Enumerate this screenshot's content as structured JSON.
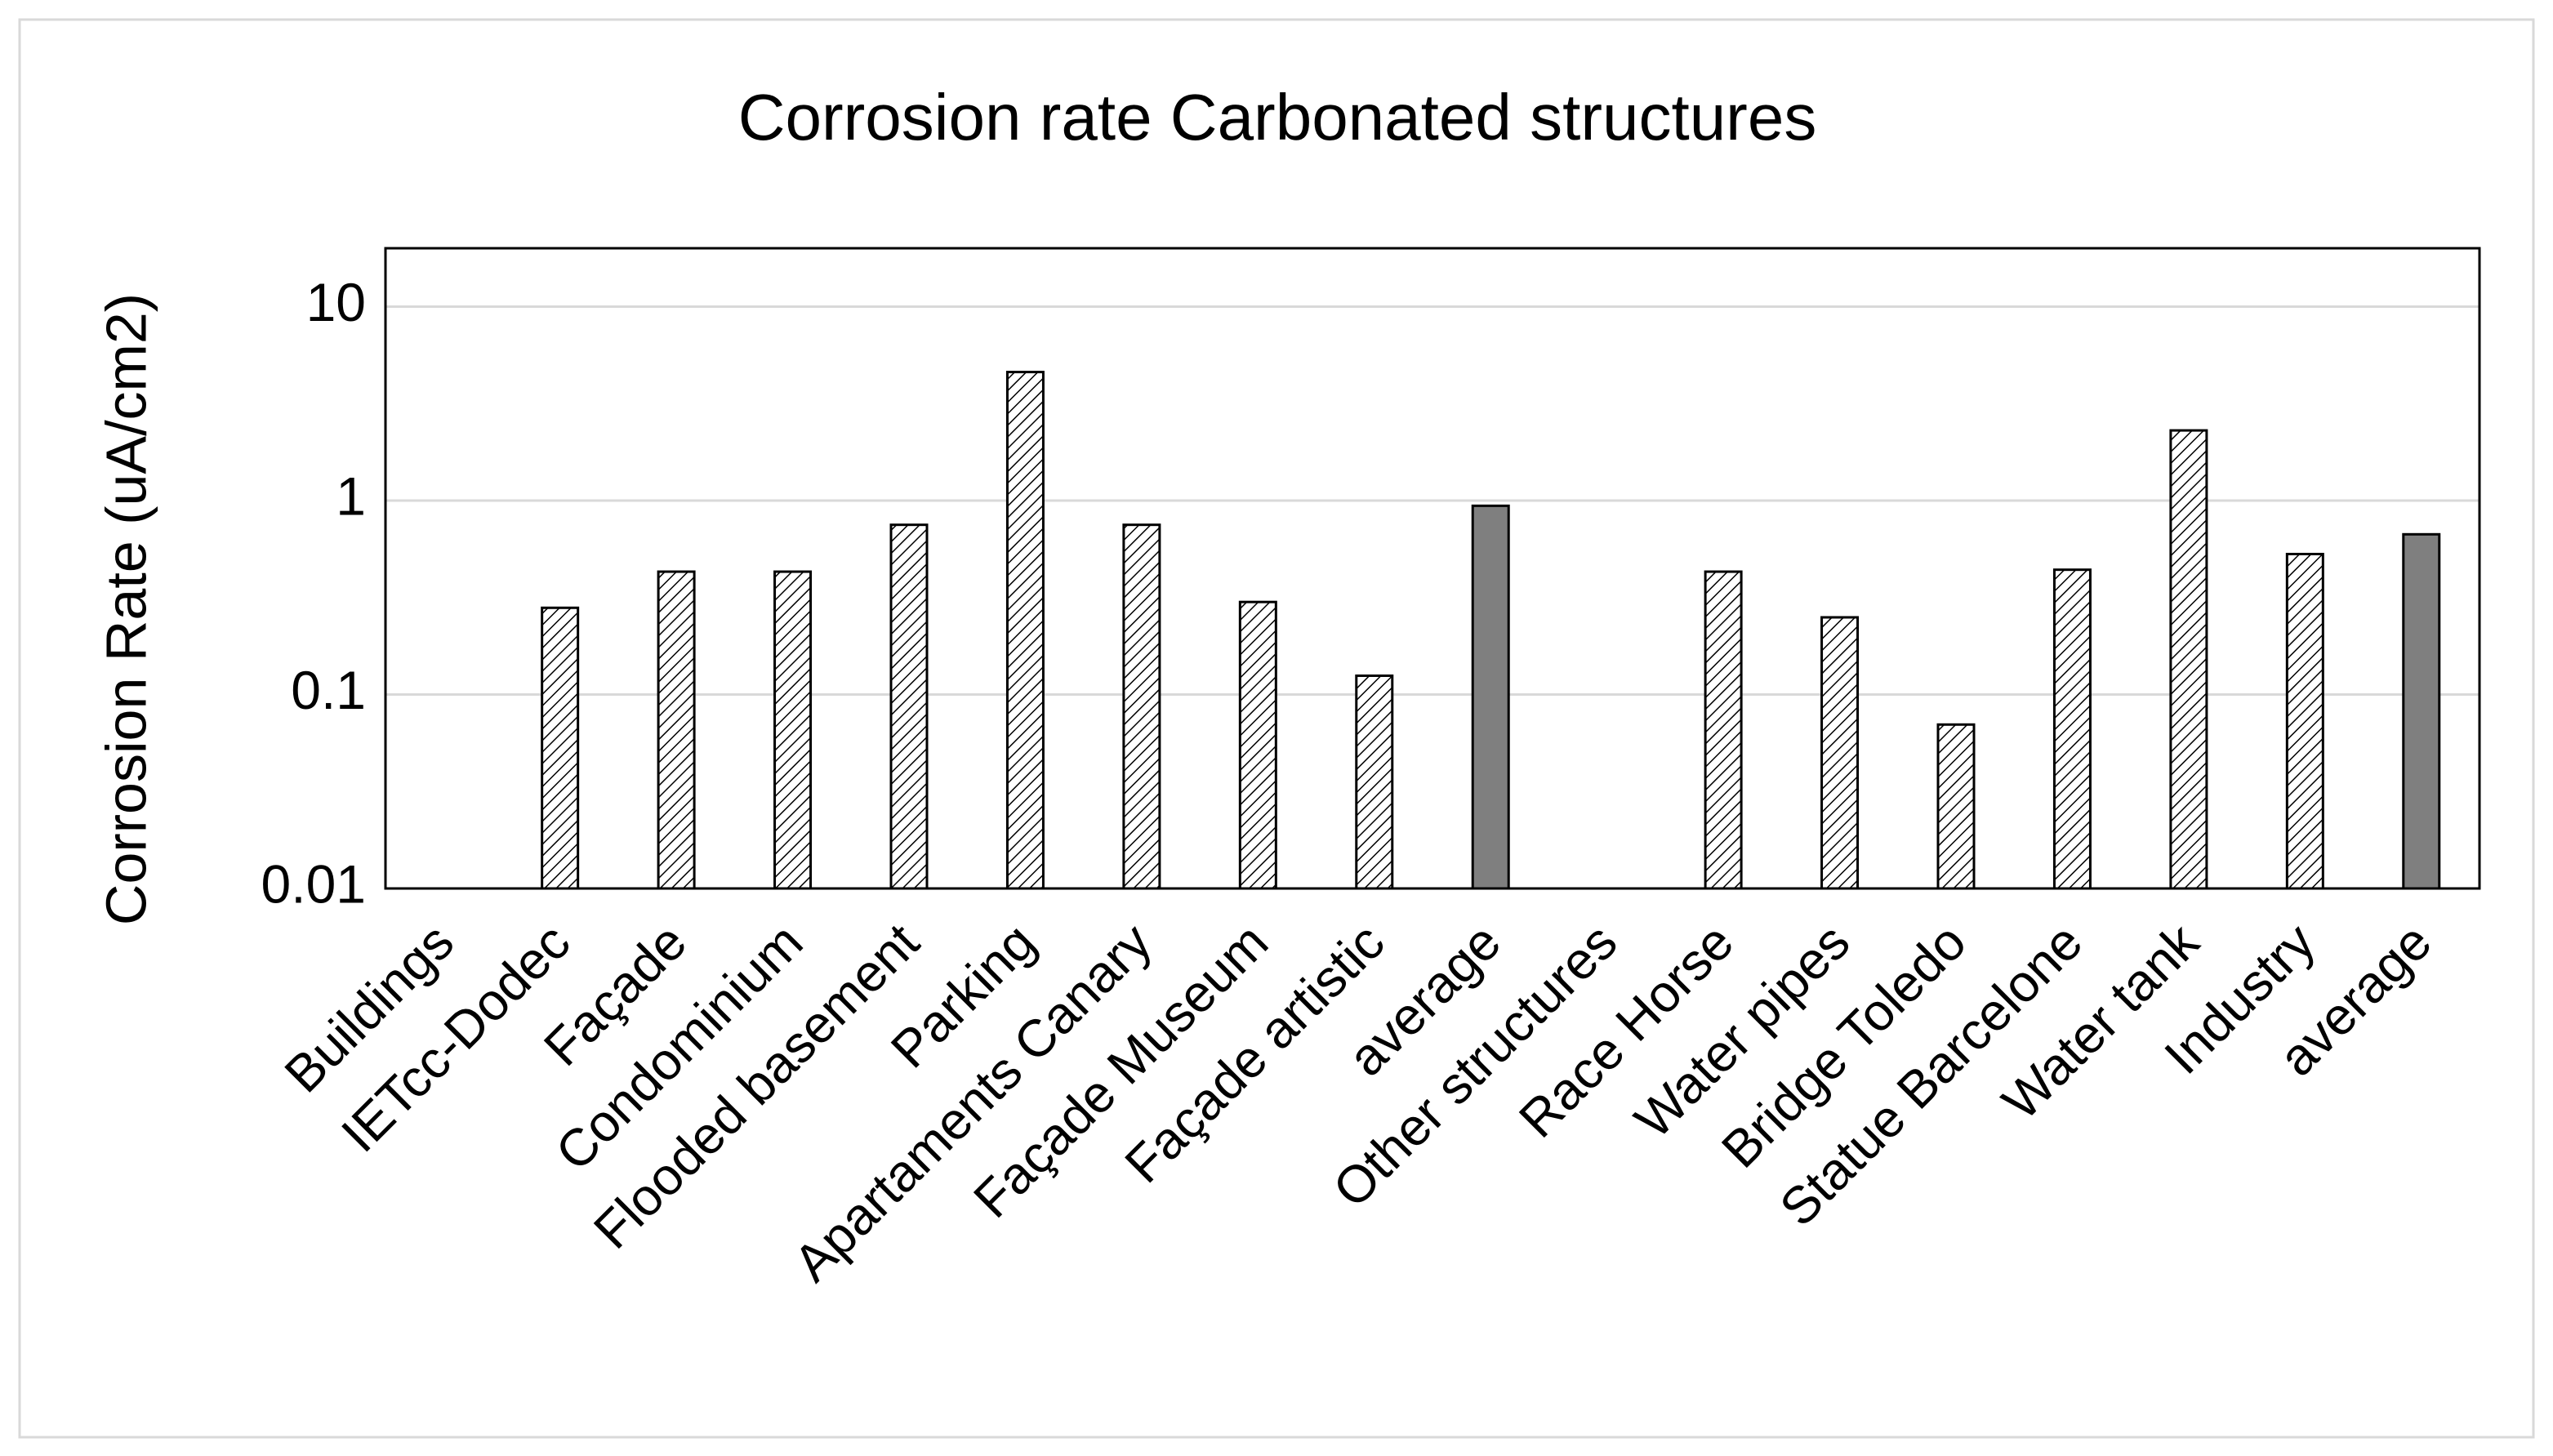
{
  "chart_data": {
    "type": "bar",
    "title": "Corrosion rate Carbonated structures",
    "y_label": "Corrosion Rate (uA/cm2)",
    "categories": [
      "Buildings",
      "IETcc-Dodec",
      "Façade",
      "Condominium",
      "Flooded basement",
      "Parking",
      "Apartaments Canary",
      "Façade Museum",
      "Façade artistic",
      "average",
      "Other structures",
      "Race Horse",
      "Water pipes",
      "Bridge Toledo",
      "Statue Barcelone",
      "Water tank",
      "Industry",
      "average"
    ],
    "values": [
      null,
      0.28,
      0.43,
      0.43,
      0.75,
      4.6,
      0.75,
      0.3,
      0.125,
      0.94,
      null,
      0.43,
      0.25,
      0.07,
      0.44,
      2.3,
      0.53,
      0.67
    ],
    "bar_fills": [
      "hatch",
      "hatch",
      "hatch",
      "hatch",
      "hatch",
      "hatch",
      "hatch",
      "hatch",
      "hatch",
      "#7f7f7f",
      "hatch",
      "hatch",
      "hatch",
      "hatch",
      "hatch",
      "hatch",
      "hatch",
      "#7f7f7f"
    ],
    "log_scale": true,
    "ylim": [
      0.01,
      20
    ],
    "yticks": [
      0.01,
      0.1,
      1,
      10
    ],
    "grid": true
  }
}
